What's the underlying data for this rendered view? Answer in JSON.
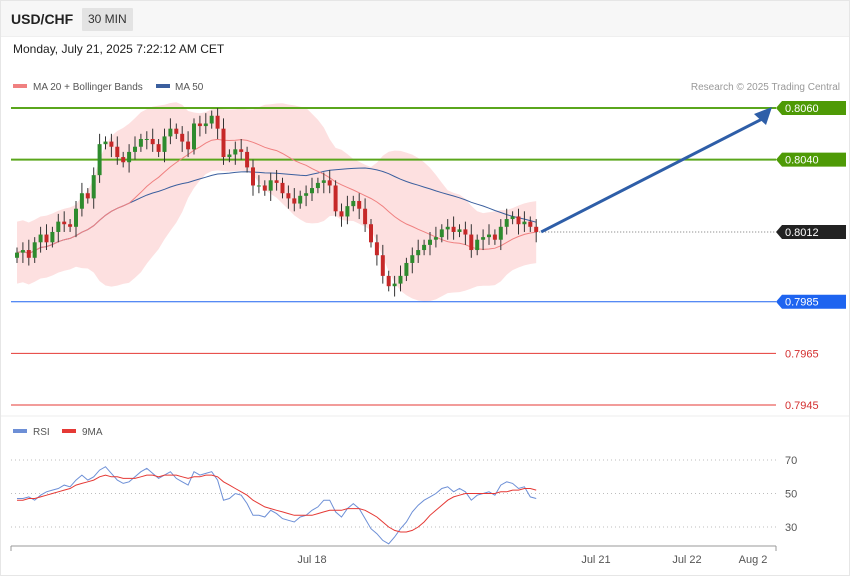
{
  "header": {
    "symbol": "USD/CHF",
    "timeframe": "30 MIN",
    "datetime": "Monday, July 21, 2025 7:22:12 AM CET"
  },
  "legend": {
    "ma20": "MA 20 + Bollinger Bands",
    "ma50": "MA 50",
    "copyright": "Research © 2025 Trading Central"
  },
  "colors": {
    "up": "#2e8b2e",
    "down": "#c62828",
    "bb_fill": "#fde0e0",
    "ma20": "#f08080",
    "ma50": "#3b5f9e",
    "resistance": "#5aa61c",
    "support": "#1e64f0",
    "target_line": "#e53935",
    "arrow": "#2e5ea8",
    "rsi": "#6d8fd6",
    "rsi_ma": "#e53935"
  },
  "chart_data": [
    {
      "type": "candlestick",
      "title": "USD/CHF 30 MIN",
      "ylim": [
        0.7941,
        0.8073
      ],
      "levels": [
        {
          "label": "0.8060",
          "value": 0.806,
          "kind": "resistance"
        },
        {
          "label": "0.8040",
          "value": 0.804,
          "kind": "resistance"
        },
        {
          "label": "0.8012",
          "value": 0.8012,
          "kind": "last"
        },
        {
          "label": "0.7985",
          "value": 0.7985,
          "kind": "support"
        },
        {
          "label": "0.7965",
          "value": 0.7965,
          "kind": "target"
        },
        {
          "label": "0.7945",
          "value": 0.7945,
          "kind": "target"
        }
      ],
      "x_ticks": [
        "Jul 18",
        "Jul 21",
        "Jul 22",
        "Aug 2"
      ],
      "series": [
        {
          "name": "MA 20 + Bollinger Bands"
        },
        {
          "name": "MA 50"
        }
      ],
      "closes": [
        0.8004,
        0.8005,
        0.8002,
        0.8008,
        0.8011,
        0.8008,
        0.8012,
        0.8016,
        0.8015,
        0.8014,
        0.8021,
        0.8027,
        0.8025,
        0.8034,
        0.8046,
        0.8047,
        0.8045,
        0.8041,
        0.8039,
        0.8043,
        0.8045,
        0.8048,
        0.8048,
        0.8046,
        0.8043,
        0.8049,
        0.8052,
        0.805,
        0.8047,
        0.8044,
        0.8054,
        0.8053,
        0.8054,
        0.8057,
        0.8052,
        0.8041,
        0.8042,
        0.8044,
        0.8043,
        0.8037,
        0.803,
        0.803,
        0.8028,
        0.8032,
        0.8031,
        0.8027,
        0.8025,
        0.8023,
        0.8026,
        0.8027,
        0.8029,
        0.8031,
        0.8032,
        0.803,
        0.802,
        0.8018,
        0.8022,
        0.8024,
        0.8021,
        0.8015,
        0.8008,
        0.8003,
        0.7995,
        0.7991,
        0.7992,
        0.7995,
        0.8,
        0.8003,
        0.8005,
        0.8007,
        0.8009,
        0.801,
        0.8013,
        0.8014,
        0.8012,
        0.8013,
        0.8011,
        0.8005,
        0.8009,
        0.801,
        0.8011,
        0.8009,
        0.8014,
        0.8017,
        0.8018,
        0.8015,
        0.8016,
        0.8014,
        0.8012
      ],
      "ma20_last": 0.8011,
      "ma50_last": 0.8012
    },
    {
      "type": "line",
      "title": "RSI",
      "ylim": [
        20,
        80
      ],
      "y_ticks": [
        30,
        50,
        70
      ],
      "series": [
        {
          "name": "RSI",
          "values": [
            47,
            47,
            48,
            46,
            49,
            51,
            52,
            53,
            55,
            54,
            58,
            61,
            58,
            60,
            64,
            66,
            62,
            58,
            56,
            57,
            60,
            63,
            65,
            62,
            59,
            61,
            63,
            59,
            57,
            55,
            63,
            61,
            62,
            63,
            58,
            46,
            47,
            50,
            49,
            44,
            37,
            37,
            36,
            40,
            38,
            35,
            34,
            33,
            36,
            37,
            40,
            42,
            46,
            46,
            39,
            36,
            41,
            44,
            41,
            35,
            29,
            26,
            22,
            20,
            24,
            29,
            33,
            39,
            43,
            46,
            48,
            50,
            53,
            54,
            51,
            53,
            51,
            46,
            49,
            50,
            51,
            49,
            55,
            57,
            56,
            53,
            54,
            48,
            47
          ]
        },
        {
          "name": "9MA",
          "values": [
            46,
            46,
            47,
            47,
            48,
            49,
            50,
            51,
            52,
            53,
            55,
            56,
            57,
            58,
            60,
            61,
            60,
            60,
            59,
            59,
            59,
            60,
            61,
            61,
            60,
            61,
            61,
            61,
            60,
            59,
            60,
            60,
            61,
            61,
            60,
            57,
            55,
            53,
            51,
            49,
            46,
            44,
            42,
            41,
            40,
            39,
            38,
            37,
            37,
            37,
            37,
            38,
            39,
            40,
            40,
            40,
            41,
            41,
            41,
            40,
            38,
            36,
            33,
            30,
            28,
            27,
            27,
            28,
            30,
            33,
            37,
            40,
            43,
            46,
            48,
            49,
            50,
            50,
            50,
            50,
            50,
            50,
            51,
            51,
            52,
            52,
            53,
            53,
            52
          ]
        }
      ]
    }
  ]
}
